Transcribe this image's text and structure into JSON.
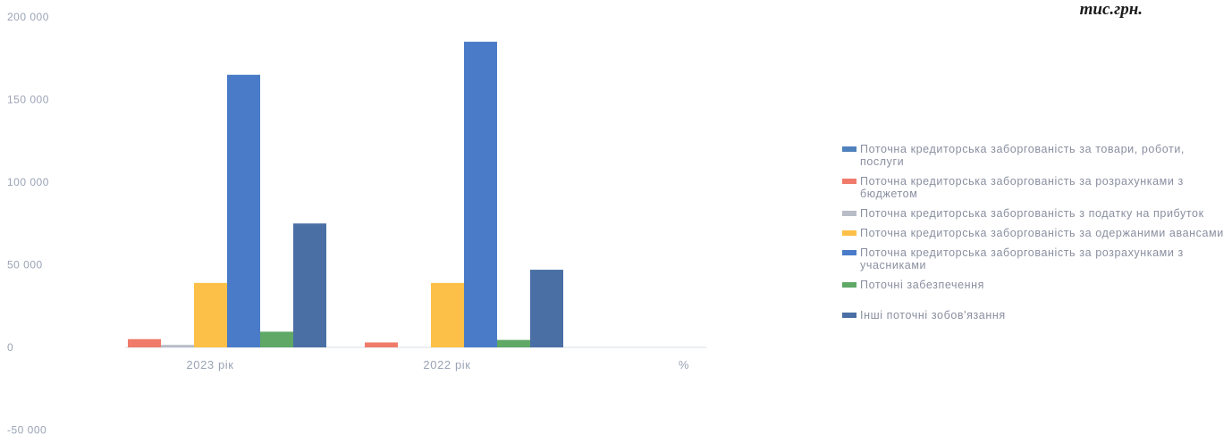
{
  "unit_label": "тис.грн.",
  "chart_data": {
    "type": "bar",
    "categories": [
      "2023 рік",
      "2022 рік",
      "%"
    ],
    "ylim": [
      -50000,
      200000
    ],
    "yticks": [
      "200 000",
      "150 000",
      "100 000",
      "50 000",
      "0",
      "-50 000"
    ],
    "ytick_values": [
      200000,
      150000,
      100000,
      50000,
      0,
      -50000
    ],
    "series": [
      {
        "name": "Поточна кредиторська заборгованість за товари, роботи, послуги",
        "color": "#4f81bd",
        "values": [
          null,
          null,
          null
        ]
      },
      {
        "name": "Поточна кредиторська заборгованість за розрахунками з бюджетом",
        "color": "#f07b6b",
        "values": [
          5000,
          3000,
          null
        ]
      },
      {
        "name": "Поточна кредиторська заборгованість з податку на прибуток",
        "color": "#b8bcc6",
        "values": [
          1500,
          null,
          null
        ]
      },
      {
        "name": "Поточна кредиторська заборгованість за одержаними авансами",
        "color": "#fcc048",
        "values": [
          39000,
          39000,
          null
        ]
      },
      {
        "name": "Поточна кредиторська заборгованість за розрахунками з учасниками",
        "color": "#4a7bc8",
        "values": [
          165000,
          185000,
          null
        ]
      },
      {
        "name": "Поточні забезпечення",
        "color": "#5fa866",
        "values": [
          9500,
          4500,
          null
        ]
      },
      {
        "name": "Інші поточні зобов'язання",
        "color": "#4a6fa5",
        "values": [
          75000,
          47000,
          null
        ]
      }
    ]
  }
}
